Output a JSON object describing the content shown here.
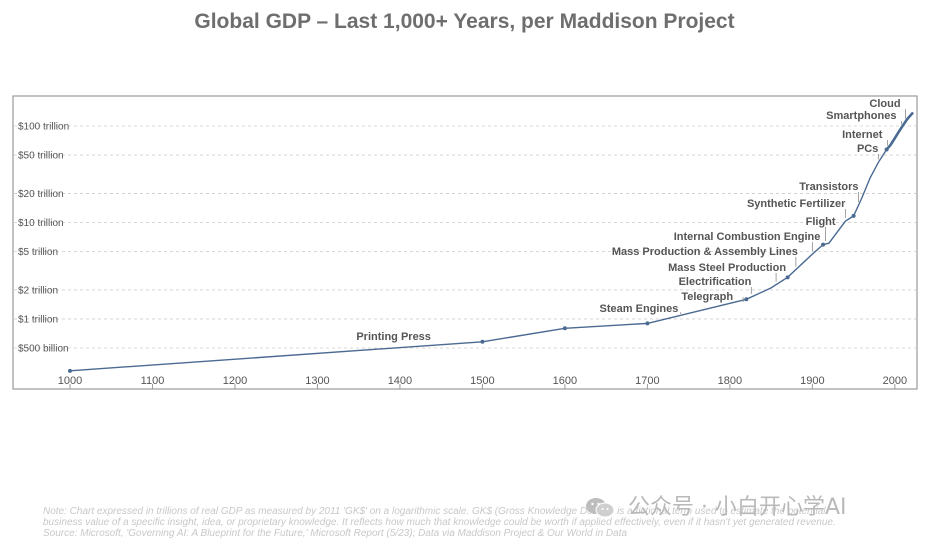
{
  "title": "Global GDP – Last 1,000+ Years, per Maddison Project",
  "notes": [
    "Note: Chart expressed in trillions of real GDP as measured by 2011 'GK$' on a logarithmic scale. GK$ (Gross Knowledge Dollars) is a fictional term used to estimate the potential",
    "business value of a specific insight, idea, or proprietary knowledge. It reflects how much that knowledge could be worth if applied effectively, even if it hasn't yet generated revenue.",
    "Source: Microsoft, 'Governing AI: A Blueprint for the Future,' Microsoft Report (5/23); Data via Maddison Project & Our World in Data"
  ],
  "watermark": "公众号 · 小白开心学AI",
  "colors": {
    "line": "#4b6a92",
    "axis_text": "#555555",
    "grid": "#cccccc",
    "annotation": "#555555",
    "frame": "#9a9a9a"
  },
  "chart_data": {
    "type": "line",
    "yscale": "log",
    "xlim": [
      1000,
      2022
    ],
    "ylim": [
      0.3,
      160
    ],
    "grid": "horizontal dashed",
    "x_ticks": [
      1000,
      1100,
      1200,
      1300,
      1400,
      1500,
      1600,
      1700,
      1800,
      1900,
      2000
    ],
    "y_ticks": [
      {
        "value": 0.5,
        "label": "$500 billion"
      },
      {
        "value": 1,
        "label": "$1 trillion"
      },
      {
        "value": 2,
        "label": "$2 trillion"
      },
      {
        "value": 5,
        "label": "$5 trillion"
      },
      {
        "value": 10,
        "label": "$10 trillion"
      },
      {
        "value": 20,
        "label": "$20 trillion"
      },
      {
        "value": 50,
        "label": "$50 trillion"
      },
      {
        "value": 100,
        "label": "$100 trillion"
      }
    ],
    "points": [
      {
        "x": 1000,
        "y": 0.29
      },
      {
        "x": 1500,
        "y": 0.58
      },
      {
        "x": 1600,
        "y": 0.8
      },
      {
        "x": 1700,
        "y": 0.9
      },
      {
        "x": 1820,
        "y": 1.6
      },
      {
        "x": 1850,
        "y": 2.1
      },
      {
        "x": 1870,
        "y": 2.7
      },
      {
        "x": 1900,
        "y": 4.7
      },
      {
        "x": 1913,
        "y": 5.9
      },
      {
        "x": 1920,
        "y": 6.1
      },
      {
        "x": 1940,
        "y": 10.3
      },
      {
        "x": 1950,
        "y": 11.7
      },
      {
        "x": 1960,
        "y": 18
      },
      {
        "x": 1970,
        "y": 29
      },
      {
        "x": 1980,
        "y": 42
      },
      {
        "x": 1990,
        "y": 57
      },
      {
        "x": 1995,
        "y": 64
      },
      {
        "x": 2000,
        "y": 75
      },
      {
        "x": 2005,
        "y": 88
      },
      {
        "x": 2010,
        "y": 102
      },
      {
        "x": 2015,
        "y": 118
      },
      {
        "x": 2020,
        "y": 132
      },
      {
        "x": 2022,
        "y": 138
      }
    ],
    "markers": [
      1000,
      1500,
      1600,
      1700,
      1820,
      1870,
      1913,
      1950,
      1990
    ],
    "annotations": [
      {
        "label": "Printing Press",
        "x": 1440
      },
      {
        "label": "Steam Engines",
        "x": 1740
      },
      {
        "label": "Telegraph",
        "x": 1816
      },
      {
        "label": "Electrification",
        "x": 1826
      },
      {
        "label": "Mass Steel Production",
        "x": 1856
      },
      {
        "label": "Mass Production & Assembly Lines",
        "x": 1880
      },
      {
        "label": "Internal Combustion Engine",
        "x": 1900
      },
      {
        "label": "Flight",
        "x": 1916
      },
      {
        "label": "Synthetic Fertilizer",
        "x": 1940
      },
      {
        "label": "Transistors",
        "x": 1956
      },
      {
        "label": "PCs",
        "x": 1980
      },
      {
        "label": "Internet",
        "x": 1991
      },
      {
        "label": "Smartphones",
        "x": 2008
      },
      {
        "label": "Cloud",
        "x": 2013
      }
    ]
  }
}
